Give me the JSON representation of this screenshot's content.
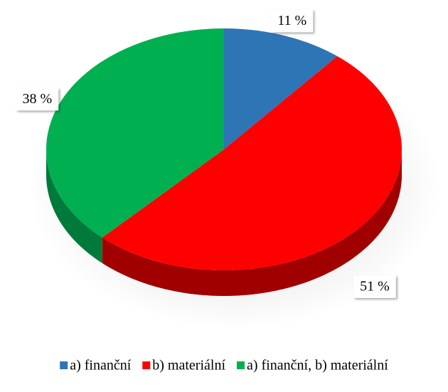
{
  "chart_data": {
    "type": "pie",
    "categories": [
      "a) finanční",
      "b) materiální",
      "a) finanční, b) materiální"
    ],
    "values": [
      11,
      51,
      38
    ],
    "value_labels": [
      "11 %",
      "51 %",
      "38 %"
    ],
    "colors": [
      "#2e75b6",
      "#ff0000",
      "#00b050"
    ],
    "side_colors": [
      "#1f4e79",
      "#a00000",
      "#007a3a"
    ],
    "legend": "bottom"
  }
}
